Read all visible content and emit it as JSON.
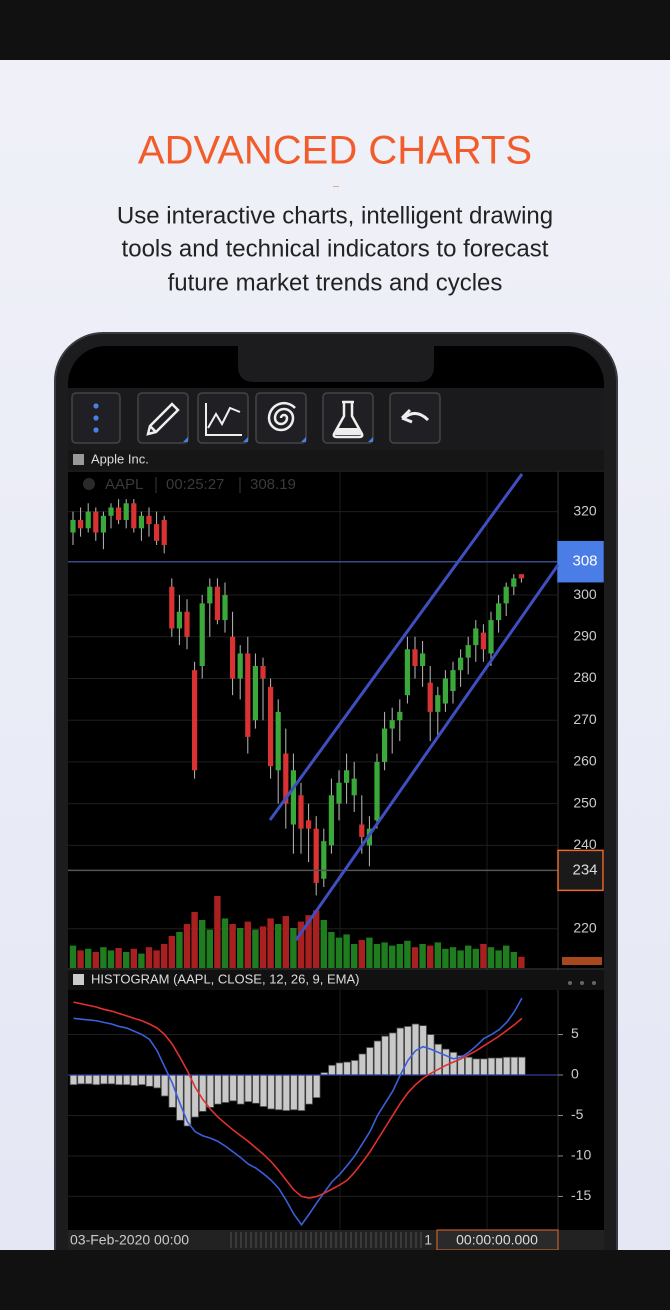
{
  "header": {
    "title": "ADVANCED CHARTS",
    "subtitle_lines": [
      "Use interactive charts, intelligent drawing",
      "tools and technical indicators to forecast",
      "future market trends and cycles"
    ]
  },
  "chart_data": [
    {
      "type": "candlestick",
      "title": "Apple Inc.",
      "legend": {
        "symbol": "AAPL",
        "time": "00:25:27",
        "price": 308.19
      },
      "open": [
        315,
        318,
        316,
        320,
        315,
        319,
        321,
        318,
        322,
        316,
        319,
        317,
        318,
        302,
        292,
        296,
        282,
        283,
        298,
        302,
        294,
        290,
        280,
        286,
        270,
        283,
        278,
        258,
        262,
        245,
        252,
        246,
        244,
        232,
        240,
        250,
        255,
        252,
        245,
        240,
        246,
        260,
        268,
        270,
        276,
        287,
        283,
        279,
        272,
        274,
        277,
        282,
        285,
        288,
        291,
        286,
        294,
        298,
        302,
        305
      ],
      "high": [
        320,
        321,
        322,
        321,
        320,
        322,
        323,
        323,
        323,
        320,
        321,
        320,
        319,
        304,
        300,
        299,
        284,
        300,
        304,
        304,
        303,
        296,
        288,
        290,
        286,
        285,
        280,
        275,
        268,
        262,
        255,
        250,
        247,
        244,
        256,
        258,
        262,
        260,
        252,
        247,
        262,
        272,
        273,
        275,
        290,
        290,
        289,
        283,
        278,
        282,
        284,
        287,
        290,
        294,
        293,
        296,
        300,
        303,
        305,
        305
      ],
      "low": [
        312,
        314,
        315,
        313,
        311,
        316,
        317,
        316,
        315,
        313,
        314,
        312,
        310,
        290,
        288,
        287,
        256,
        280,
        290,
        293,
        291,
        276,
        275,
        262,
        268,
        270,
        256,
        250,
        244,
        238,
        238,
        236,
        228,
        230,
        238,
        246,
        250,
        248,
        238,
        235,
        244,
        258,
        262,
        265,
        274,
        280,
        278,
        265,
        266,
        272,
        274,
        278,
        281,
        284,
        284,
        283,
        291,
        295,
        300,
        303
      ],
      "close": [
        318,
        316,
        320,
        315,
        319,
        321,
        318,
        322,
        316,
        319,
        317,
        313,
        312,
        292,
        296,
        290,
        258,
        298,
        302,
        294,
        300,
        280,
        286,
        266,
        283,
        280,
        259,
        272,
        250,
        258,
        244,
        244,
        231,
        241,
        252,
        255,
        258,
        256,
        242,
        244,
        260,
        268,
        270,
        272,
        287,
        283,
        286,
        272,
        276,
        280,
        282,
        285,
        288,
        292,
        287,
        294,
        298,
        302,
        304,
        304
      ],
      "volume": [
        28,
        22,
        24,
        20,
        26,
        22,
        25,
        20,
        24,
        18,
        26,
        22,
        30,
        40,
        45,
        55,
        70,
        60,
        48,
        90,
        62,
        55,
        50,
        58,
        48,
        52,
        62,
        55,
        65,
        50,
        58,
        66,
        72,
        60,
        45,
        38,
        42,
        30,
        35,
        38,
        30,
        32,
        28,
        30,
        34,
        26,
        30,
        28,
        32,
        24,
        26,
        22,
        28,
        24,
        30,
        26,
        22,
        28,
        20,
        14
      ],
      "up_color": "#3ba83b",
      "down_color": "#d93232",
      "volume_up_color": "#1f7d1f",
      "volume_down_color": "#a82020",
      "ylim": [
        210.6,
        329.5
      ],
      "yticks": [
        220,
        240,
        250,
        260,
        270,
        280,
        290,
        300,
        320
      ],
      "grid": true,
      "price_labels": [
        308,
        234
      ],
      "price_label_colors": [
        "#4a7ee6",
        "#e8692a"
      ]
    },
    {
      "type": "histogram",
      "title": "HISTOGRAM (AAPL, CLOSE, 12, 26, 9, EMA)",
      "values": [
        -1.2,
        -1.1,
        -1.1,
        -1.2,
        -1.1,
        -1.1,
        -1.2,
        -1.2,
        -1.3,
        -1.2,
        -1.4,
        -1.6,
        -2.6,
        -4.0,
        -5.6,
        -6.3,
        -5.2,
        -4.5,
        -4.0,
        -3.6,
        -3.4,
        -3.2,
        -3.6,
        -3.3,
        -3.5,
        -3.9,
        -4.2,
        -4.3,
        -4.4,
        -4.3,
        -4.4,
        -3.6,
        -2.8,
        0.3,
        1.2,
        1.5,
        1.6,
        1.8,
        2.6,
        3.4,
        4.2,
        4.8,
        5.2,
        5.8,
        6.0,
        6.3,
        6.1,
        5.0,
        3.8,
        3.2,
        2.8,
        2.4,
        2.2,
        2.0,
        2.0,
        2.1,
        2.1,
        2.2,
        2.2,
        2.2
      ],
      "color": "#c9c9c9",
      "lines": [
        {
          "color": "#3a5fd9",
          "values": [
            7,
            6.9,
            6.8,
            6.7,
            6.5,
            6.3,
            6.0,
            5.8,
            5.4,
            5.0,
            4.4,
            3.0,
            1.0,
            -1.0,
            -3.5,
            -5.8,
            -7.0,
            -7.5,
            -7.8,
            -8.2,
            -8.8,
            -9.5,
            -10.2,
            -11.0,
            -11.5,
            -12.2,
            -13.0,
            -14.0,
            -15.5,
            -17.2,
            -18.5,
            -17.2,
            -15.8,
            -14.5,
            -13.2,
            -12.3,
            -11.2,
            -10.0,
            -8.5,
            -7.0,
            -5.0,
            -3.5,
            -2.0,
            0,
            1.8,
            3.0,
            3.5,
            3.2,
            2.8,
            2.4,
            2.0,
            2.2,
            2.8,
            3.6,
            4.5,
            5.0,
            5.6,
            6.5,
            7.8,
            9.5
          ]
        },
        {
          "color": "#e03030",
          "values": [
            9.0,
            8.8,
            8.6,
            8.4,
            8.1,
            7.9,
            7.6,
            7.3,
            7.0,
            6.7,
            6.3,
            5.8,
            5.0,
            3.8,
            2.2,
            0.5,
            -1.5,
            -3.0,
            -4.2,
            -5.2,
            -6.0,
            -6.8,
            -7.5,
            -8.2,
            -9.0,
            -9.8,
            -10.7,
            -11.8,
            -13.0,
            -14.2,
            -15.0,
            -15.2,
            -15.0,
            -14.6,
            -14.1,
            -13.6,
            -13.0,
            -12.0,
            -10.8,
            -9.5,
            -8.0,
            -6.5,
            -5.0,
            -3.5,
            -2.2,
            -1.2,
            -0.4,
            0.2,
            0.7,
            1.2,
            1.6,
            2.0,
            2.5,
            3.0,
            3.6,
            4.2,
            4.8,
            5.5,
            6.2,
            7.0
          ]
        }
      ],
      "ylim": [
        -18.9,
        10.5
      ],
      "yticks": [
        -15,
        -10,
        -5,
        0,
        5
      ],
      "grid": true
    }
  ],
  "status_bar": {
    "date": "03-Feb-2020 00:00",
    "count": "1",
    "timer": "00:00:00.000"
  }
}
